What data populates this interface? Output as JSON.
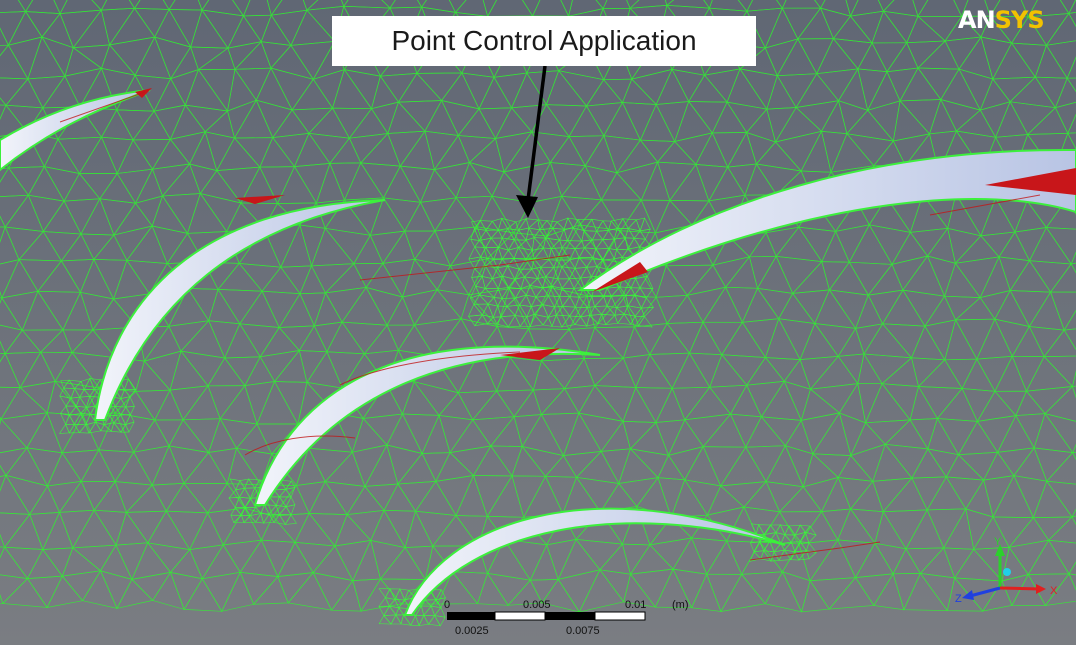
{
  "callout": {
    "text": "Point Control Application"
  },
  "logo": {
    "prefix": "AN",
    "suffix": "SYS"
  },
  "scale_bar": {
    "top_labels": [
      "0",
      "0.005",
      "0.01"
    ],
    "bottom_labels": [
      "0.0025",
      "0.0075"
    ],
    "unit": "(m)"
  },
  "triad": {
    "axes": [
      "X",
      "Y",
      "Z"
    ]
  },
  "colors": {
    "background": "#6b7078",
    "mesh": "#2ef52e",
    "blade": "#c8d4ec",
    "highlight": "#c8161a",
    "logo_accent": "#f2c200"
  },
  "icons": [
    "arrow-down-icon",
    "axis-triad-icon",
    "ansys-logo"
  ]
}
